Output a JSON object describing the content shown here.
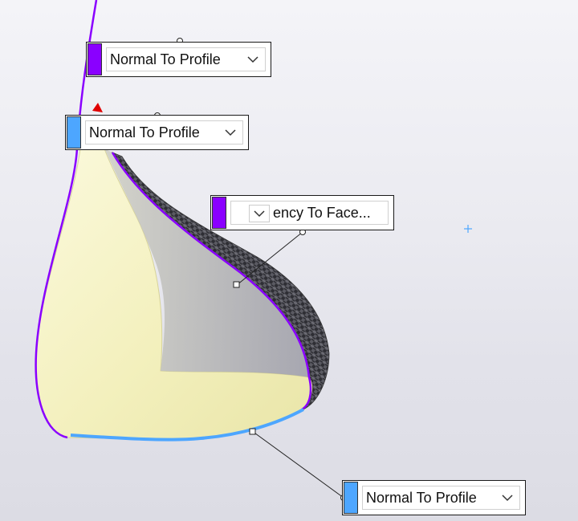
{
  "callouts": [
    {
      "id": "top",
      "label": "Normal To Profile",
      "swatch_color": "#8a00ff"
    },
    {
      "id": "second",
      "label": "Normal To Profile",
      "swatch_color": "#4da6ff"
    },
    {
      "id": "middle",
      "label": "ency To Face...",
      "swatch_color": "#8a00ff"
    },
    {
      "id": "bottom",
      "label": "Normal To Profile",
      "swatch_color": "#4da6ff"
    }
  ],
  "colors": {
    "profile_curve": "#8a00ff",
    "guide_edge": "#4da6ff",
    "surface_face": "#f6f3c4",
    "carbon_texture": "#4a4a52",
    "marker_red": "#e00000"
  },
  "icons": {
    "dropdown": "chevron-down-icon",
    "cursor": "crosshair-plus-icon"
  }
}
